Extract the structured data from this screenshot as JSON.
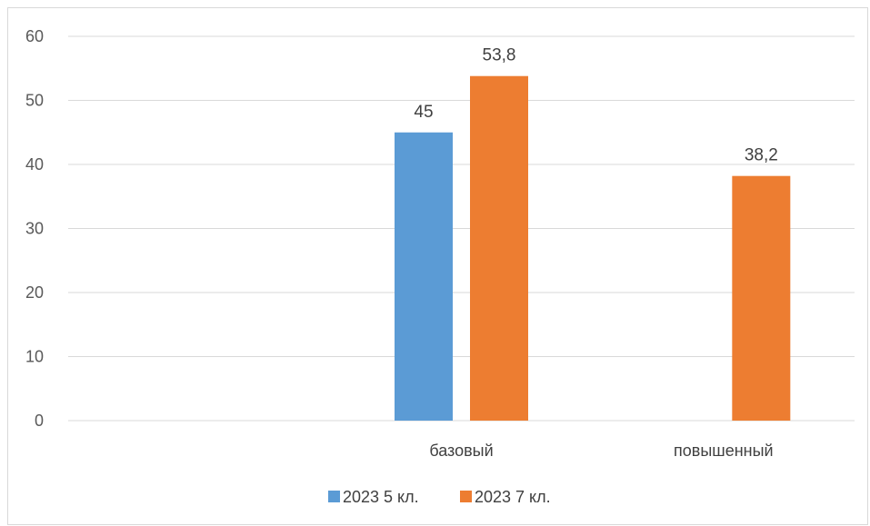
{
  "chart_data": {
    "type": "bar",
    "categories": [
      "",
      "базовый",
      "повышенный"
    ],
    "series": [
      {
        "name": "2023 5 кл.",
        "color": "#5b9bd5",
        "values": [
          null,
          45,
          null
        ],
        "labels": [
          null,
          "45",
          null
        ]
      },
      {
        "name": "2023 7 кл.",
        "color": "#ed7d31",
        "values": [
          null,
          53.8,
          38.2
        ],
        "labels": [
          null,
          "53,8",
          "38,2"
        ]
      }
    ],
    "ylim": [
      0,
      60
    ],
    "yticks": [
      0,
      10,
      20,
      30,
      40,
      50,
      60
    ],
    "grid": true,
    "legend_position": "bottom"
  }
}
